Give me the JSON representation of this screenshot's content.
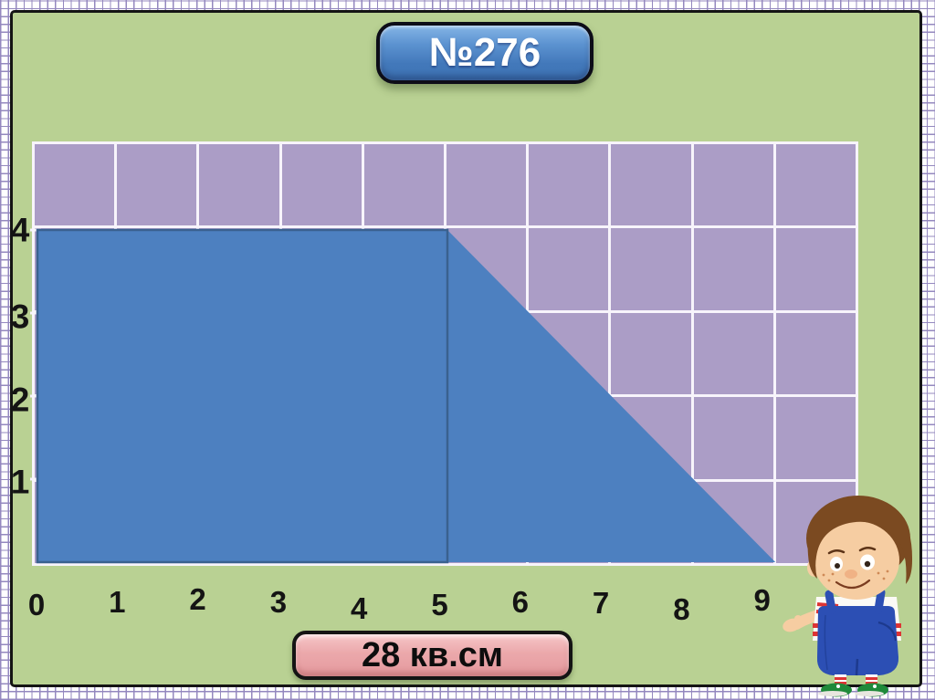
{
  "slide": {
    "title_badge_label": "№276",
    "area_badge_label": "28 кв.см"
  },
  "chart_data": {
    "type": "area",
    "title": "№276",
    "x_tick_labels": [
      "0",
      "1",
      "2",
      "3",
      "4",
      "5",
      "6",
      "7",
      "8",
      "9"
    ],
    "y_tick_labels": [
      "4",
      "3",
      "2",
      "1"
    ],
    "grid": {
      "columns": 10,
      "rows": 5
    },
    "shape": {
      "name": "trapezoid",
      "vertices_units": [
        [
          0,
          0
        ],
        [
          0,
          4
        ],
        [
          5,
          4
        ],
        [
          9,
          0
        ]
      ],
      "rectangle_part": {
        "width_units": 5,
        "height_units": 4
      },
      "triangle_part": {
        "base_units": 4,
        "height_units": 4
      },
      "area_value": 28,
      "area_units_label": "кв.см"
    },
    "colors": {
      "shape_fill": "#4d80c0",
      "shape_stroke": "#3a618f",
      "grid_cell": "#ab9dc6",
      "grid_line": "#f7f4fb",
      "panel_background": "#b9d193",
      "title_badge": "#4f86c6",
      "area_badge": "#e9a4a7"
    }
  },
  "mascot": {
    "name": "boy"
  }
}
